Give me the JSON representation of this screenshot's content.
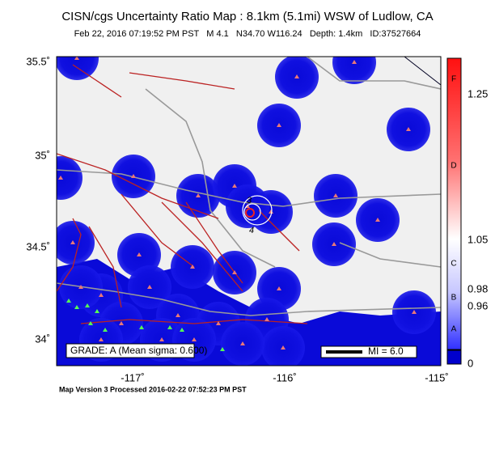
{
  "header": {
    "title": "CISN/cgs Uncertainty Ratio Map : 8.1km (5.1mi) WSW of Ludlow, CA",
    "subtitle": "Feb 22, 2016 07:19:52 PM PST   M 4.1   N34.70 W116.24   Depth: 1.4km   ID:37527664"
  },
  "map": {
    "lat_labels": [
      "35.5˚",
      "35˚",
      "34.5˚",
      "34˚"
    ],
    "lon_labels": [
      "-117˚",
      "-116˚",
      "-115˚"
    ],
    "contour_labels": [
      "3",
      "4"
    ],
    "grade": "GRADE: A (Mean sigma: 0.600)",
    "scale": "MI = 6.0"
  },
  "colorbar": {
    "values": [
      "1.25",
      "1.05",
      "0.98",
      "0.96",
      "0"
    ],
    "grades": [
      "F",
      "D",
      "C",
      "B",
      "A"
    ]
  },
  "footer": "Map Version 3 Processed 2016-02-22 07:52:23 PM PST"
}
